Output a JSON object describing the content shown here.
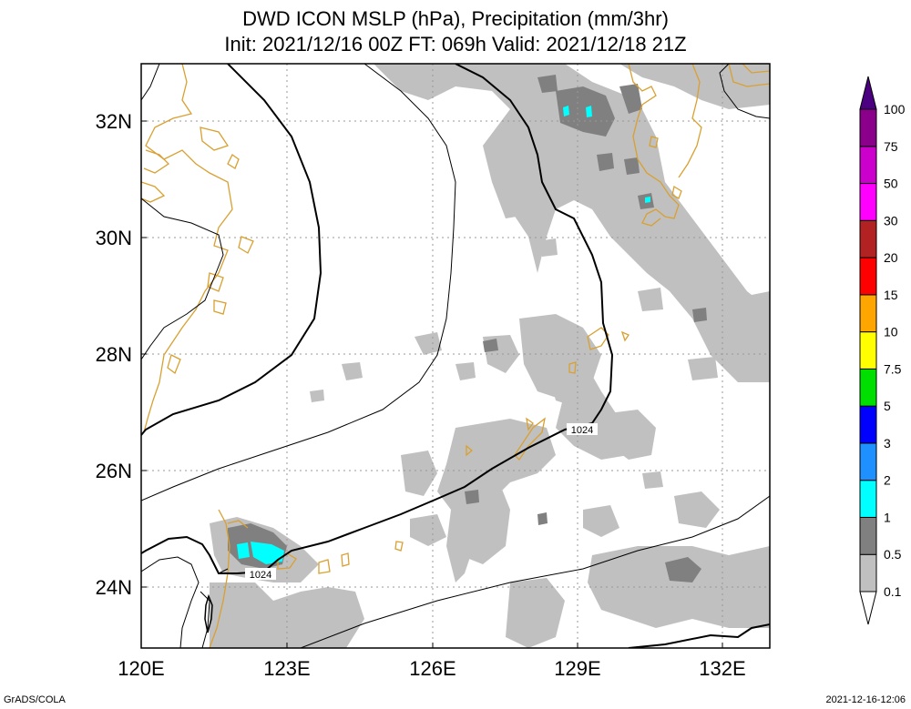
{
  "header": {
    "title_line1": "DWD ICON MSLP (hPa), Precipitation (mm/3hr)",
    "title_line2": "Init: 2021/12/16 00Z  FT: 069h  Valid: 2021/12/18 21Z"
  },
  "map": {
    "lon_ticks": [
      "120E",
      "123E",
      "126E",
      "129E",
      "132E"
    ],
    "lat_ticks": [
      "24N",
      "26N",
      "28N",
      "30N",
      "32N"
    ],
    "isobar_labels": [
      "1024",
      "1024"
    ],
    "coastline_color": "#d9a031",
    "isobar_color": "#000000",
    "grid": true
  },
  "colorbar": {
    "labels": [
      "0.1",
      "0.5",
      "1",
      "2",
      "3",
      "5",
      "7.5",
      "10",
      "15",
      "20",
      "30",
      "50",
      "75",
      "100"
    ],
    "colors": [
      "#ffffff",
      "#c0c0c0",
      "#808080",
      "#00ffff",
      "#1e90ff",
      "#0000ff",
      "#00e000",
      "#ffff00",
      "#ffa500",
      "#ff0000",
      "#b22222",
      "#ff00ff",
      "#cc00cc",
      "#8b008b",
      "#4b0082"
    ]
  },
  "footer": {
    "left": "GrADS/COLA",
    "right": "2021-12-16-12:06"
  }
}
